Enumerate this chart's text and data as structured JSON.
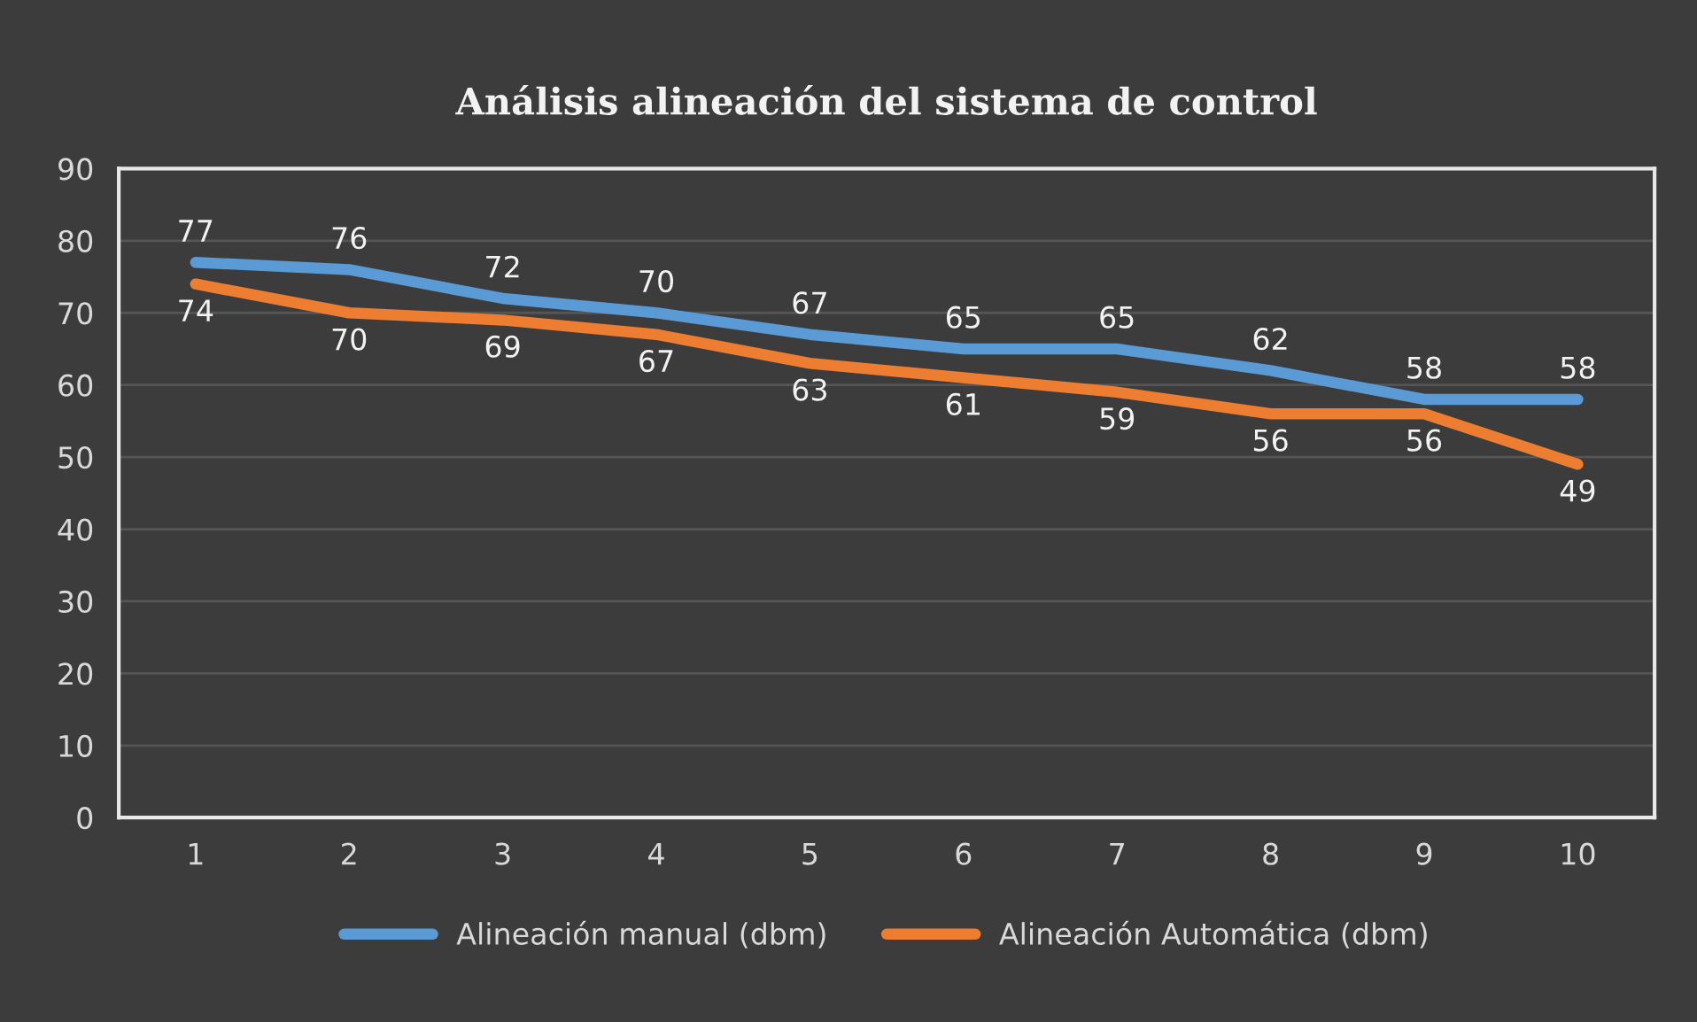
{
  "chart_data": {
    "type": "line",
    "title": "Análisis alineación del sistema de control",
    "categories": [
      "1",
      "2",
      "3",
      "4",
      "5",
      "6",
      "7",
      "8",
      "9",
      "10"
    ],
    "series": [
      {
        "name": "Alineación manual (dbm)",
        "color": "#5b9bd5",
        "values": [
          77,
          76,
          72,
          70,
          67,
          65,
          65,
          62,
          58,
          58
        ]
      },
      {
        "name": "Alineación Automática (dbm)",
        "color": "#ed7d31",
        "values": [
          74,
          70,
          69,
          67,
          63,
          61,
          59,
          56,
          56,
          49
        ]
      }
    ],
    "ylim": [
      0,
      90
    ],
    "yticks": [
      0,
      10,
      20,
      30,
      40,
      50,
      60,
      70,
      80,
      90
    ],
    "grid": "y",
    "legend": "bottom",
    "data_labels": true,
    "marker": "none",
    "line_style": "solid"
  }
}
